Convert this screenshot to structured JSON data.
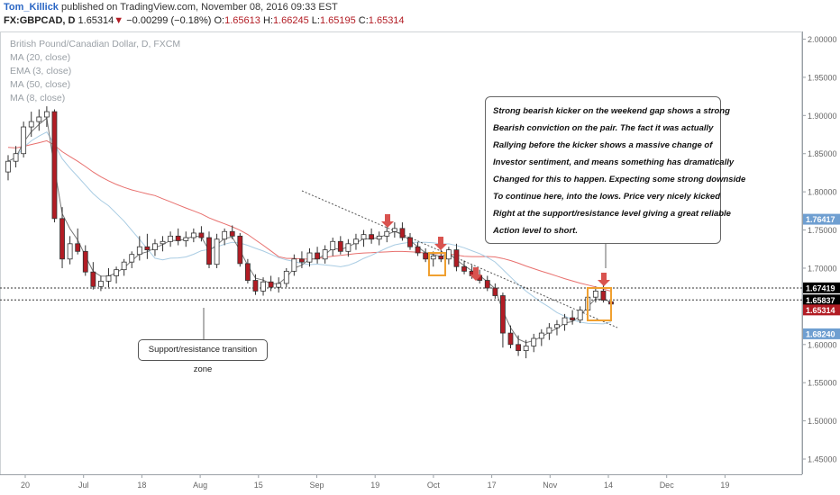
{
  "header": {
    "user": "Tom_Killick",
    "published_text": "published on TradingView.com, November 08, 2016 09:33 EST",
    "symbol": "FX:GBPCAD, D",
    "last": "1.65314",
    "down_arrow": "▼",
    "change": "−0.00299 (−0.18%)",
    "o_label": "O:",
    "o_val": "1.65613",
    "h_label": "H:",
    "h_val": "1.66245",
    "l_label": "L:",
    "l_val": "1.65195",
    "c_label": "C:",
    "c_val": "1.65314"
  },
  "legend": {
    "title": "British Pound/Canadian Dollar, D, FXCM",
    "ma20": "MA (20, close)",
    "ema3": "EMA (3, close)",
    "ma50": "MA (50, close)",
    "ma8": "MA (8, close)"
  },
  "annotation": [
    "Strong bearish kicker on the weekend gap shows a strong",
    "Bearish conviction on the pair. The fact it was actually",
    "Rallying before the kicker shows a massive change of",
    "Investor sentiment, and means something has dramatically",
    "Changed for this to happen. Expecting some strong downside",
    "To continue here, into the lows. Price very nicely kicked",
    "Right at the support/resistance level giving a great reliable",
    "Action level to short."
  ],
  "zone_label": "Support/resistance transition zone",
  "colors": {
    "up_candle": "#ffffff",
    "down_candle": "#b21c24",
    "ma20": "#a9cce3",
    "ma50": "#e8706e",
    "ema_line": "#777777",
    "arrow": "#d9534f",
    "box": "#f0a030",
    "price_tag_blue": "#6f9fd1",
    "price_tag_black": "#000000",
    "price_tag_red": "#b21c24"
  },
  "chart_data": {
    "type": "candlestick",
    "symbol": "GBPCAD",
    "x_ticks": [
      "20",
      "Jul",
      "18",
      "Aug",
      "15",
      "Sep",
      "19",
      "Oct",
      "17",
      "Nov",
      "14",
      "Dec",
      "19"
    ],
    "y_ticks": [
      "2.00000",
      "1.95000",
      "1.90000",
      "1.85000",
      "1.80000",
      "1.75000",
      "1.70000",
      "1.65000",
      "1.60000",
      "1.55000",
      "1.50000",
      "1.45000"
    ],
    "ylim": [
      1.43,
      2.01
    ],
    "price_tags": [
      "1.76417",
      "1.67419",
      "1.65837",
      "1.65314",
      "1.68240"
    ],
    "candles": [
      {
        "o": 1.826,
        "h": 1.848,
        "l": 1.815,
        "c": 1.84
      },
      {
        "o": 1.84,
        "h": 1.86,
        "l": 1.832,
        "c": 1.85
      },
      {
        "o": 1.85,
        "h": 1.892,
        "l": 1.845,
        "c": 1.885
      },
      {
        "o": 1.885,
        "h": 1.905,
        "l": 1.872,
        "c": 1.892
      },
      {
        "o": 1.892,
        "h": 1.908,
        "l": 1.88,
        "c": 1.898
      },
      {
        "o": 1.898,
        "h": 1.912,
        "l": 1.885,
        "c": 1.905
      },
      {
        "o": 1.905,
        "h": 1.908,
        "l": 1.76,
        "c": 1.765
      },
      {
        "o": 1.765,
        "h": 1.78,
        "l": 1.7,
        "c": 1.712
      },
      {
        "o": 1.712,
        "h": 1.742,
        "l": 1.705,
        "c": 1.732
      },
      {
        "o": 1.732,
        "h": 1.752,
        "l": 1.718,
        "c": 1.722
      },
      {
        "o": 1.722,
        "h": 1.73,
        "l": 1.69,
        "c": 1.695
      },
      {
        "o": 1.695,
        "h": 1.708,
        "l": 1.672,
        "c": 1.676
      },
      {
        "o": 1.676,
        "h": 1.69,
        "l": 1.67,
        "c": 1.683
      },
      {
        "o": 1.683,
        "h": 1.7,
        "l": 1.675,
        "c": 1.69
      },
      {
        "o": 1.69,
        "h": 1.702,
        "l": 1.68,
        "c": 1.698
      },
      {
        "o": 1.698,
        "h": 1.712,
        "l": 1.69,
        "c": 1.708
      },
      {
        "o": 1.708,
        "h": 1.722,
        "l": 1.7,
        "c": 1.718
      },
      {
        "o": 1.718,
        "h": 1.742,
        "l": 1.71,
        "c": 1.728
      },
      {
        "o": 1.728,
        "h": 1.745,
        "l": 1.712,
        "c": 1.724
      },
      {
        "o": 1.724,
        "h": 1.738,
        "l": 1.716,
        "c": 1.732
      },
      {
        "o": 1.732,
        "h": 1.742,
        "l": 1.722,
        "c": 1.735
      },
      {
        "o": 1.735,
        "h": 1.748,
        "l": 1.728,
        "c": 1.742
      },
      {
        "o": 1.742,
        "h": 1.752,
        "l": 1.73,
        "c": 1.736
      },
      {
        "o": 1.736,
        "h": 1.748,
        "l": 1.728,
        "c": 1.74
      },
      {
        "o": 1.74,
        "h": 1.752,
        "l": 1.734,
        "c": 1.746
      },
      {
        "o": 1.746,
        "h": 1.755,
        "l": 1.735,
        "c": 1.74
      },
      {
        "o": 1.74,
        "h": 1.748,
        "l": 1.7,
        "c": 1.705
      },
      {
        "o": 1.705,
        "h": 1.745,
        "l": 1.7,
        "c": 1.738
      },
      {
        "o": 1.738,
        "h": 1.752,
        "l": 1.73,
        "c": 1.748
      },
      {
        "o": 1.748,
        "h": 1.756,
        "l": 1.738,
        "c": 1.742
      },
      {
        "o": 1.742,
        "h": 1.746,
        "l": 1.702,
        "c": 1.706
      },
      {
        "o": 1.706,
        "h": 1.712,
        "l": 1.68,
        "c": 1.684
      },
      {
        "o": 1.684,
        "h": 1.692,
        "l": 1.665,
        "c": 1.67
      },
      {
        "o": 1.67,
        "h": 1.688,
        "l": 1.664,
        "c": 1.682
      },
      {
        "o": 1.682,
        "h": 1.69,
        "l": 1.67,
        "c": 1.675
      },
      {
        "o": 1.675,
        "h": 1.688,
        "l": 1.668,
        "c": 1.68
      },
      {
        "o": 1.68,
        "h": 1.7,
        "l": 1.675,
        "c": 1.696
      },
      {
        "o": 1.696,
        "h": 1.718,
        "l": 1.69,
        "c": 1.712
      },
      {
        "o": 1.712,
        "h": 1.722,
        "l": 1.7,
        "c": 1.708
      },
      {
        "o": 1.708,
        "h": 1.726,
        "l": 1.702,
        "c": 1.72
      },
      {
        "o": 1.72,
        "h": 1.728,
        "l": 1.706,
        "c": 1.712
      },
      {
        "o": 1.712,
        "h": 1.73,
        "l": 1.706,
        "c": 1.724
      },
      {
        "o": 1.724,
        "h": 1.74,
        "l": 1.716,
        "c": 1.735
      },
      {
        "o": 1.735,
        "h": 1.742,
        "l": 1.718,
        "c": 1.722
      },
      {
        "o": 1.722,
        "h": 1.738,
        "l": 1.715,
        "c": 1.732
      },
      {
        "o": 1.732,
        "h": 1.745,
        "l": 1.724,
        "c": 1.738
      },
      {
        "o": 1.738,
        "h": 1.75,
        "l": 1.728,
        "c": 1.744
      },
      {
        "o": 1.744,
        "h": 1.752,
        "l": 1.732,
        "c": 1.738
      },
      {
        "o": 1.738,
        "h": 1.748,
        "l": 1.73,
        "c": 1.742
      },
      {
        "o": 1.742,
        "h": 1.754,
        "l": 1.734,
        "c": 1.748
      },
      {
        "o": 1.748,
        "h": 1.76,
        "l": 1.74,
        "c": 1.752
      },
      {
        "o": 1.752,
        "h": 1.76,
        "l": 1.736,
        "c": 1.74
      },
      {
        "o": 1.74,
        "h": 1.746,
        "l": 1.724,
        "c": 1.728
      },
      {
        "o": 1.728,
        "h": 1.734,
        "l": 1.716,
        "c": 1.72
      },
      {
        "o": 1.72,
        "h": 1.726,
        "l": 1.708,
        "c": 1.712
      },
      {
        "o": 1.712,
        "h": 1.722,
        "l": 1.702,
        "c": 1.716
      },
      {
        "o": 1.716,
        "h": 1.724,
        "l": 1.708,
        "c": 1.712
      },
      {
        "o": 1.712,
        "h": 1.728,
        "l": 1.705,
        "c": 1.724
      },
      {
        "o": 1.724,
        "h": 1.732,
        "l": 1.696,
        "c": 1.702
      },
      {
        "o": 1.702,
        "h": 1.71,
        "l": 1.692,
        "c": 1.696
      },
      {
        "o": 1.696,
        "h": 1.704,
        "l": 1.686,
        "c": 1.69
      },
      {
        "o": 1.69,
        "h": 1.698,
        "l": 1.68,
        "c": 1.684
      },
      {
        "o": 1.684,
        "h": 1.69,
        "l": 1.67,
        "c": 1.674
      },
      {
        "o": 1.674,
        "h": 1.68,
        "l": 1.66,
        "c": 1.664
      },
      {
        "o": 1.664,
        "h": 1.668,
        "l": 1.596,
        "c": 1.615
      },
      {
        "o": 1.615,
        "h": 1.625,
        "l": 1.595,
        "c": 1.6
      },
      {
        "o": 1.6,
        "h": 1.612,
        "l": 1.585,
        "c": 1.592
      },
      {
        "o": 1.592,
        "h": 1.606,
        "l": 1.582,
        "c": 1.598
      },
      {
        "o": 1.598,
        "h": 1.614,
        "l": 1.59,
        "c": 1.608
      },
      {
        "o": 1.608,
        "h": 1.62,
        "l": 1.598,
        "c": 1.615
      },
      {
        "o": 1.615,
        "h": 1.628,
        "l": 1.606,
        "c": 1.622
      },
      {
        "o": 1.622,
        "h": 1.632,
        "l": 1.612,
        "c": 1.626
      },
      {
        "o": 1.626,
        "h": 1.64,
        "l": 1.618,
        "c": 1.635
      },
      {
        "o": 1.635,
        "h": 1.645,
        "l": 1.626,
        "c": 1.632
      },
      {
        "o": 1.632,
        "h": 1.65,
        "l": 1.628,
        "c": 1.645
      },
      {
        "o": 1.645,
        "h": 1.668,
        "l": 1.64,
        "c": 1.662
      },
      {
        "o": 1.662,
        "h": 1.676,
        "l": 1.655,
        "c": 1.67
      },
      {
        "o": 1.67,
        "h": 1.678,
        "l": 1.655,
        "c": 1.658
      },
      {
        "o": 1.656,
        "h": 1.662,
        "l": 1.652,
        "c": 1.653
      }
    ]
  }
}
